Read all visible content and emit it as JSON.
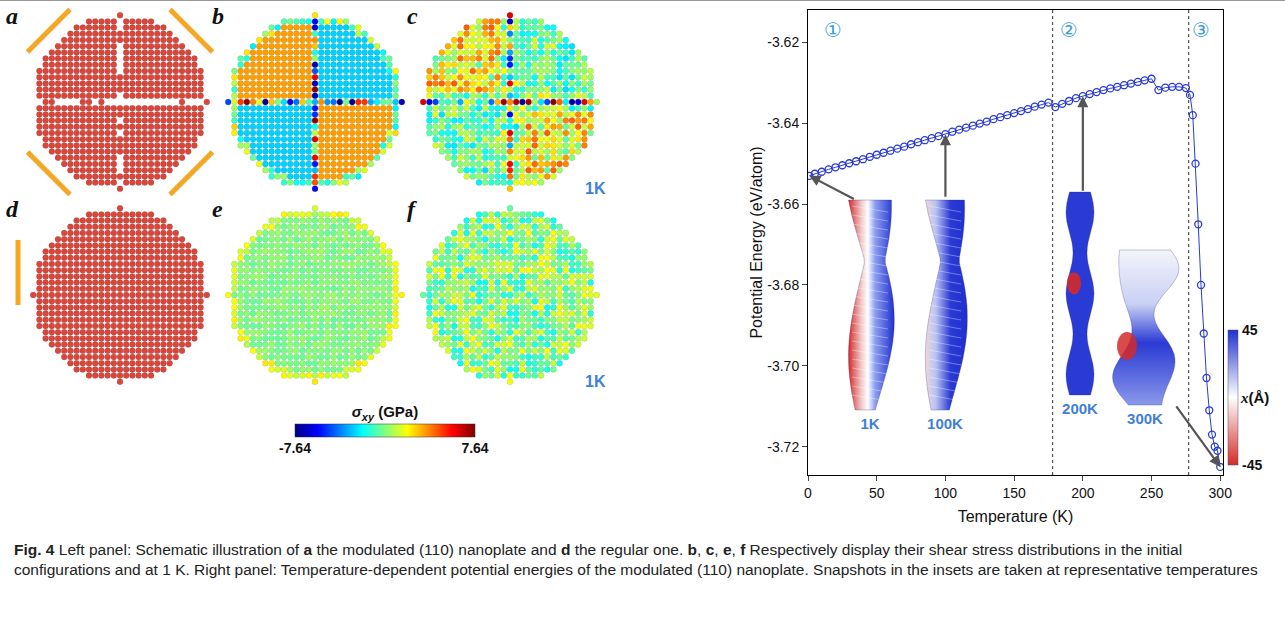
{
  "left_panel": {
    "panels": [
      {
        "letter": "a"
      },
      {
        "letter": "b"
      },
      {
        "letter": "c",
        "label": "1K"
      },
      {
        "letter": "d"
      },
      {
        "letter": "e"
      },
      {
        "letter": "f",
        "label": "1K"
      }
    ],
    "colorbar": {
      "title": {
        "symbol": "σ",
        "sub": "xy",
        "text": " (GPa)"
      },
      "min": -7.64,
      "max": 7.64,
      "ticks": [
        -7.64,
        7.64
      ]
    }
  },
  "chart_data": {
    "type": "line",
    "x_label": "Temperature (K)",
    "y_label": "Potential Energy (eV/atom)",
    "color": "#2a3bd0",
    "marker": "open circle",
    "x": [
      1,
      5,
      10,
      15,
      20,
      25,
      30,
      35,
      40,
      45,
      50,
      55,
      60,
      65,
      70,
      75,
      80,
      85,
      90,
      95,
      100,
      105,
      110,
      115,
      120,
      125,
      130,
      135,
      140,
      145,
      150,
      155,
      160,
      165,
      170,
      175,
      180,
      185,
      190,
      195,
      200,
      205,
      210,
      215,
      220,
      225,
      230,
      235,
      240,
      245,
      250,
      255,
      260,
      265,
      270,
      275,
      278,
      280,
      282,
      284,
      286,
      288,
      290,
      292,
      294,
      296,
      298,
      300
    ],
    "values": [
      -3.653,
      -3.6525,
      -3.652,
      -3.6514,
      -3.6509,
      -3.6504,
      -3.6499,
      -3.6494,
      -3.6489,
      -3.6483,
      -3.6478,
      -3.6473,
      -3.6468,
      -3.6463,
      -3.6458,
      -3.6452,
      -3.6447,
      -3.6442,
      -3.6437,
      -3.6432,
      -3.6427,
      -3.6421,
      -3.6416,
      -3.6411,
      -3.6406,
      -3.6401,
      -3.6396,
      -3.639,
      -3.6385,
      -3.638,
      -3.6375,
      -3.637,
      -3.6365,
      -3.6359,
      -3.6354,
      -3.6349,
      -3.636,
      -3.6352,
      -3.6345,
      -3.6338,
      -3.6333,
      -3.6328,
      -3.6323,
      -3.6318,
      -3.6314,
      -3.631,
      -3.6306,
      -3.6302,
      -3.6298,
      -3.6294,
      -3.629,
      -3.6318,
      -3.6312,
      -3.631,
      -3.631,
      -3.6313,
      -3.633,
      -3.638,
      -3.65,
      -3.665,
      -3.68,
      -3.692,
      -3.703,
      -3.711,
      -3.717,
      -3.72,
      -3.721,
      -3.725
    ],
    "xlim": [
      0,
      302
    ],
    "xticks": [
      0,
      50,
      100,
      150,
      200,
      250,
      300
    ],
    "ylim": [
      -3.727,
      -3.612
    ],
    "yticks": [
      -3.62,
      -3.64,
      -3.66,
      -3.68,
      {
        "value": -3.7,
        "label": "-3.70"
      },
      -3.72
    ],
    "grid": false,
    "dividers": [
      178,
      277
    ],
    "annotations": [
      {
        "text": "①",
        "x": 18,
        "y": -3.617
      },
      {
        "text": "②",
        "x": 190,
        "y": -3.617
      },
      {
        "text": "③",
        "x": 286,
        "y": -3.617
      }
    ],
    "insets": [
      {
        "label": "1K",
        "x": 1
      },
      {
        "label": "100K",
        "x": 100
      },
      {
        "label": "200K",
        "x": 200
      },
      {
        "label": "300K",
        "x": 300
      }
    ],
    "colorbar": {
      "title": {
        "symbol": "x",
        "text": "(Å)"
      },
      "min": -45,
      "max": 45,
      "ticks": [
        45,
        -45
      ]
    }
  },
  "caption": [
    {
      "text": "Fig. 4",
      "bold": true
    },
    {
      "text": " Left panel: Schematic illustration of "
    },
    {
      "text": "a",
      "bold": true
    },
    {
      "text": " the modulated (110) nanoplate and "
    },
    {
      "text": "d",
      "bold": true
    },
    {
      "text": " the regular one. "
    },
    {
      "text": "b",
      "bold": true
    },
    {
      "text": ", "
    },
    {
      "text": "c",
      "bold": true
    },
    {
      "text": ", "
    },
    {
      "text": "e",
      "bold": true
    },
    {
      "text": ", "
    },
    {
      "text": "f",
      "bold": true
    },
    {
      "text": " Respectively display their shear stress distributions in the initial configurations and at 1 K. Right panel: Temperature-dependent potential energies of the modulated (110) nanoplate. Snapshots in the insets are taken at representative temperatures"
    }
  ]
}
